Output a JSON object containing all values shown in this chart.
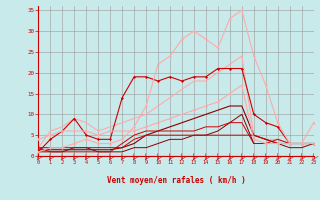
{
  "xlabel": "Vent moyen/en rafales ( km/h )",
  "bg_color": "#c8eaea",
  "grid_color": "#999999",
  "xlim": [
    0,
    23
  ],
  "ylim": [
    0,
    36
  ],
  "xticks": [
    0,
    1,
    2,
    3,
    4,
    5,
    6,
    7,
    8,
    9,
    10,
    11,
    12,
    13,
    14,
    15,
    16,
    17,
    18,
    19,
    20,
    21,
    22,
    23
  ],
  "yticks": [
    0,
    5,
    10,
    15,
    20,
    25,
    30,
    35
  ],
  "lines": [
    {
      "x": [
        0,
        1,
        2,
        3,
        4,
        5,
        6,
        7,
        8,
        9,
        10,
        11,
        12,
        13,
        14,
        15,
        16,
        17,
        18,
        19,
        20,
        21,
        22,
        23
      ],
      "y": [
        1,
        4,
        6,
        9,
        5,
        4,
        4,
        14,
        19,
        19,
        18,
        19,
        18,
        19,
        19,
        21,
        21,
        21,
        10,
        8,
        7,
        3,
        3,
        3
      ],
      "color": "#cc0000",
      "lw": 0.8,
      "marker": "D",
      "ms": 1.5
    },
    {
      "x": [
        0,
        1,
        2,
        3,
        4,
        5,
        6,
        7,
        8,
        9,
        10,
        11,
        12,
        13,
        14,
        15,
        16,
        17,
        18,
        19,
        20,
        21,
        22,
        23
      ],
      "y": [
        1,
        2,
        2,
        3,
        4,
        3,
        3,
        4,
        7,
        12,
        22,
        24,
        28,
        30,
        28,
        26,
        33,
        35,
        24,
        17,
        8,
        3,
        3,
        8
      ],
      "color": "#ffaaaa",
      "lw": 0.8,
      "marker": "D",
      "ms": 1.5
    },
    {
      "x": [
        0,
        1,
        2,
        3,
        4,
        5,
        6,
        7,
        8,
        9,
        10,
        11,
        12,
        13,
        14,
        15,
        16,
        17,
        18,
        19,
        20,
        21,
        22,
        23
      ],
      "y": [
        4,
        5,
        6,
        6,
        6,
        5,
        6,
        6,
        6,
        7,
        8,
        9,
        10,
        11,
        12,
        13,
        15,
        17,
        4,
        3,
        3,
        3,
        3,
        3
      ],
      "color": "#ffaaaa",
      "lw": 0.8,
      "marker": "D",
      "ms": 1.5
    },
    {
      "x": [
        0,
        1,
        2,
        3,
        4,
        5,
        6,
        7,
        8,
        9,
        10,
        11,
        12,
        13,
        14,
        15,
        16,
        17,
        18,
        19,
        20,
        21,
        22,
        23
      ],
      "y": [
        2,
        6,
        7,
        9,
        8,
        6,
        7,
        8,
        9,
        10,
        12,
        14,
        16,
        18,
        18,
        20,
        22,
        24,
        5,
        4,
        4,
        3,
        3,
        3
      ],
      "color": "#ffaaaa",
      "lw": 0.8,
      "marker": null,
      "ms": 0
    },
    {
      "x": [
        0,
        1,
        2,
        3,
        4,
        5,
        6,
        7,
        8,
        9,
        10,
        11,
        12,
        13,
        14,
        15,
        16,
        17,
        18,
        19,
        20,
        21,
        22,
        23
      ],
      "y": [
        1.5,
        1.5,
        1.5,
        1.5,
        1.5,
        1.5,
        1.5,
        2,
        3,
        5,
        6,
        7,
        8,
        9,
        10,
        11,
        12,
        12,
        5,
        4,
        3,
        3,
        3,
        3
      ],
      "color": "#880000",
      "lw": 0.8,
      "marker": null,
      "ms": 0
    },
    {
      "x": [
        0,
        1,
        2,
        3,
        4,
        5,
        6,
        7,
        8,
        9,
        10,
        11,
        12,
        13,
        14,
        15,
        16,
        17,
        18,
        19,
        20,
        21,
        22,
        23
      ],
      "y": [
        1,
        1,
        1,
        2,
        2,
        1,
        1,
        1,
        2,
        2,
        3,
        4,
        4,
        5,
        5,
        6,
        8,
        10,
        3,
        3,
        3,
        2,
        2,
        3
      ],
      "color": "#880000",
      "lw": 0.7,
      "marker": null,
      "ms": 0
    },
    {
      "x": [
        0,
        1,
        2,
        3,
        4,
        5,
        6,
        7,
        8,
        9,
        10,
        11,
        12,
        13,
        14,
        15,
        16,
        17,
        18,
        19,
        20,
        21,
        22,
        23
      ],
      "y": [
        2,
        2,
        2,
        2,
        2,
        2,
        2,
        2,
        4,
        5,
        5,
        5,
        5,
        5,
        5,
        5,
        5,
        5,
        5,
        4,
        3,
        3,
        3,
        3
      ],
      "color": "#cc0000",
      "lw": 0.7,
      "marker": null,
      "ms": 0
    },
    {
      "x": [
        0,
        1,
        2,
        3,
        4,
        5,
        6,
        7,
        8,
        9,
        10,
        11,
        12,
        13,
        14,
        15,
        16,
        17,
        18,
        19,
        20,
        21,
        22,
        23
      ],
      "y": [
        2,
        1,
        1,
        1,
        1,
        1,
        1,
        3,
        5,
        6,
        6,
        6,
        6,
        6,
        7,
        7,
        8,
        8,
        3,
        3,
        4,
        3,
        3,
        3
      ],
      "color": "#cc0000",
      "lw": 0.7,
      "marker": null,
      "ms": 0
    }
  ],
  "axis_label_color": "#cc0000",
  "tick_color": "#cc0000"
}
